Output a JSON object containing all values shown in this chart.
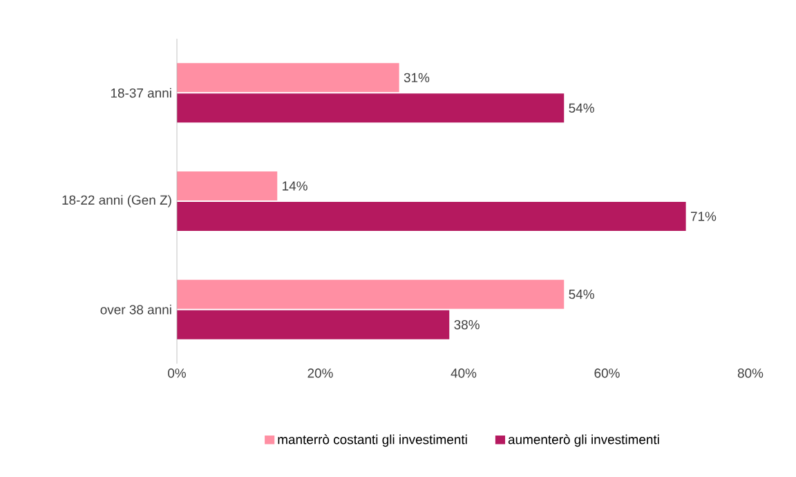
{
  "chart_data": {
    "type": "bar",
    "orientation": "horizontal",
    "categories": [
      "18-37 anni",
      "18-22 anni (Gen Z)",
      "over 38 anni"
    ],
    "series": [
      {
        "name": "manterrò costanti gli investimenti",
        "color": "#ff8fa3",
        "values": [
          31,
          14,
          54
        ],
        "value_labels": [
          "31%",
          "14%",
          "54%"
        ]
      },
      {
        "name": "aumenterò gli investimenti",
        "color": "#b5195f",
        "values": [
          54,
          71,
          38
        ],
        "value_labels": [
          "54%",
          "71%",
          "38%"
        ]
      }
    ],
    "xlim": [
      0,
      80
    ],
    "xticks": [
      {
        "value": 0,
        "label": "0%"
      },
      {
        "value": 20,
        "label": "20%"
      },
      {
        "value": 40,
        "label": "40%"
      },
      {
        "value": 60,
        "label": "60%"
      },
      {
        "value": 80,
        "label": "80%"
      }
    ],
    "legend": "bottom"
  }
}
